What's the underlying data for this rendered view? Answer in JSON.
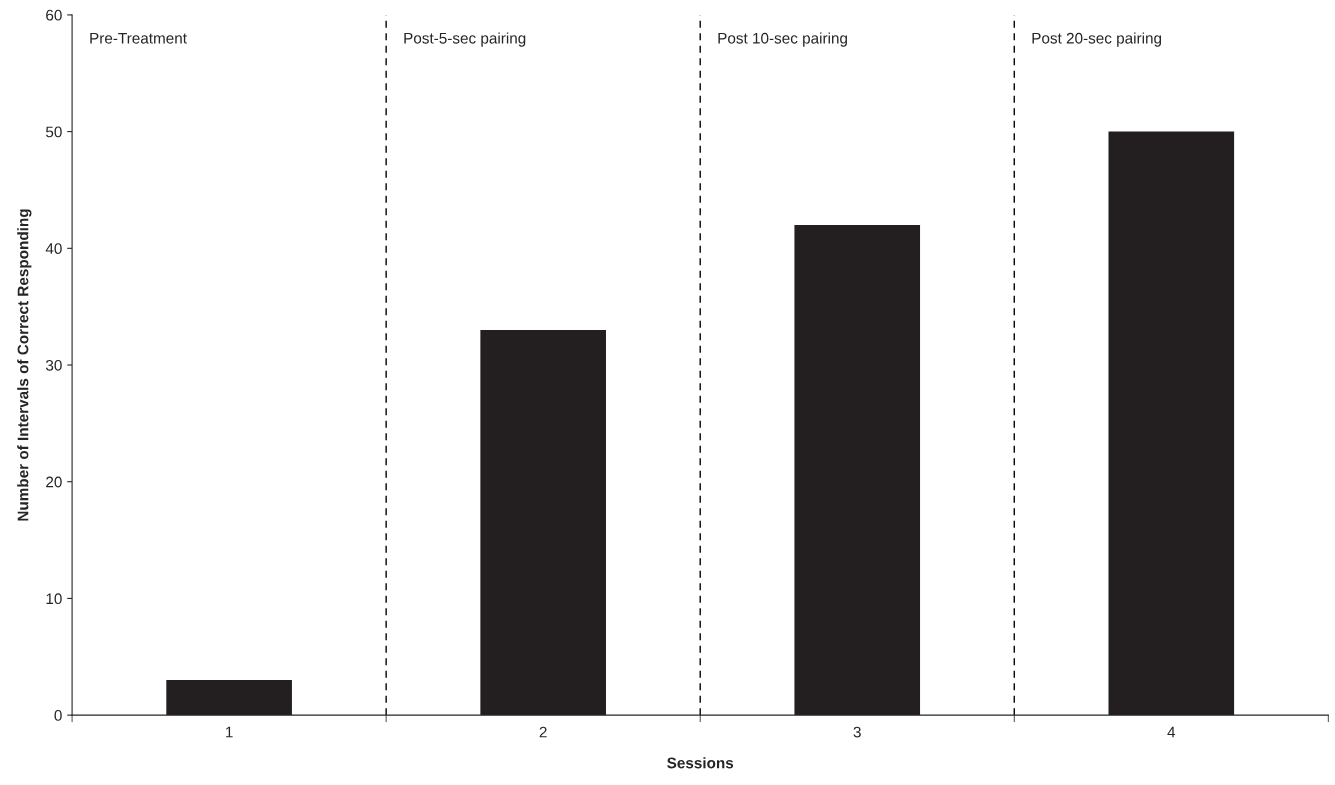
{
  "chart_data": {
    "type": "bar",
    "xlabel": "Sessions",
    "ylabel": "Number of Intervals of Correct Responding",
    "x": [
      1,
      2,
      3,
      4
    ],
    "values": [
      3,
      33,
      42,
      50
    ],
    "color": "#231f20",
    "xlim": [
      0.5,
      4.5
    ],
    "xticks": [
      1,
      2,
      3,
      4
    ],
    "ylim": [
      0,
      60
    ],
    "yticks": [
      0,
      10,
      20,
      30,
      40,
      50,
      60
    ],
    "ref_lines": [
      {
        "axis": "x",
        "value": 1.5,
        "line_style": "dashed"
      },
      {
        "axis": "x",
        "value": 2.5,
        "line_style": "dashed"
      },
      {
        "axis": "x",
        "value": 3.5,
        "line_style": "dashed"
      }
    ],
    "annotations": [
      "Pre-Treatment",
      "Post-5-sec pairing",
      "Post 10-sec pairing",
      "Post 20-sec pairing"
    ],
    "grid": false,
    "legend": false
  }
}
